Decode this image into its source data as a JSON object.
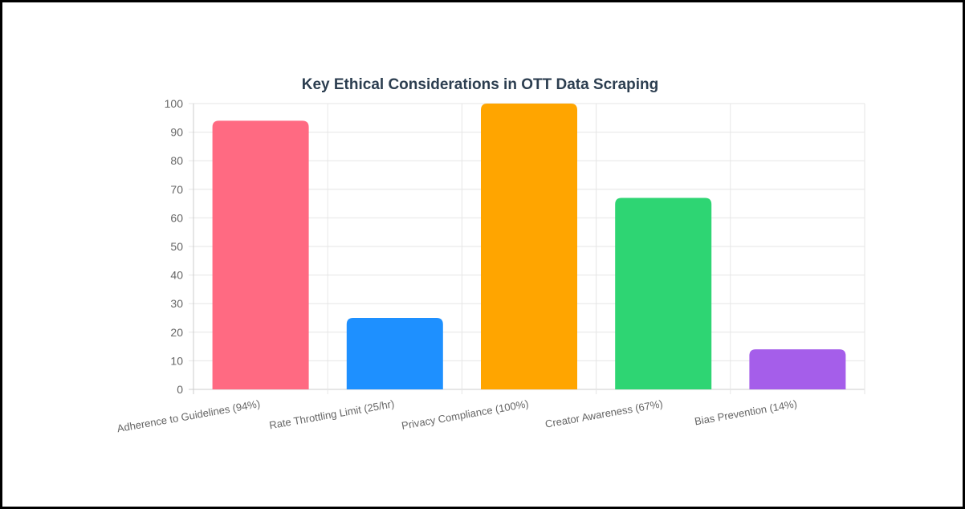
{
  "chart_data": {
    "type": "bar",
    "title": "Key Ethical Considerations in OTT Data Scraping",
    "categories": [
      "Adherence to Guidelines (94%)",
      "Rate Throttling Limit (25/hr)",
      "Privacy Compliance (100%)",
      "Creator Awareness (67%)",
      "Bias Prevention (14%)"
    ],
    "values": [
      94,
      25,
      100,
      67,
      14
    ],
    "colors": [
      "#ff6a82",
      "#1e90ff",
      "#ffa500",
      "#2ed573",
      "#a55eea"
    ],
    "xlabel": "",
    "ylabel": "",
    "ylim": [
      0,
      100
    ],
    "yticks": [
      0,
      10,
      20,
      30,
      40,
      50,
      60,
      70,
      80,
      90,
      100
    ],
    "grid": true,
    "legend": "none",
    "title_color": "#2c3e50"
  }
}
